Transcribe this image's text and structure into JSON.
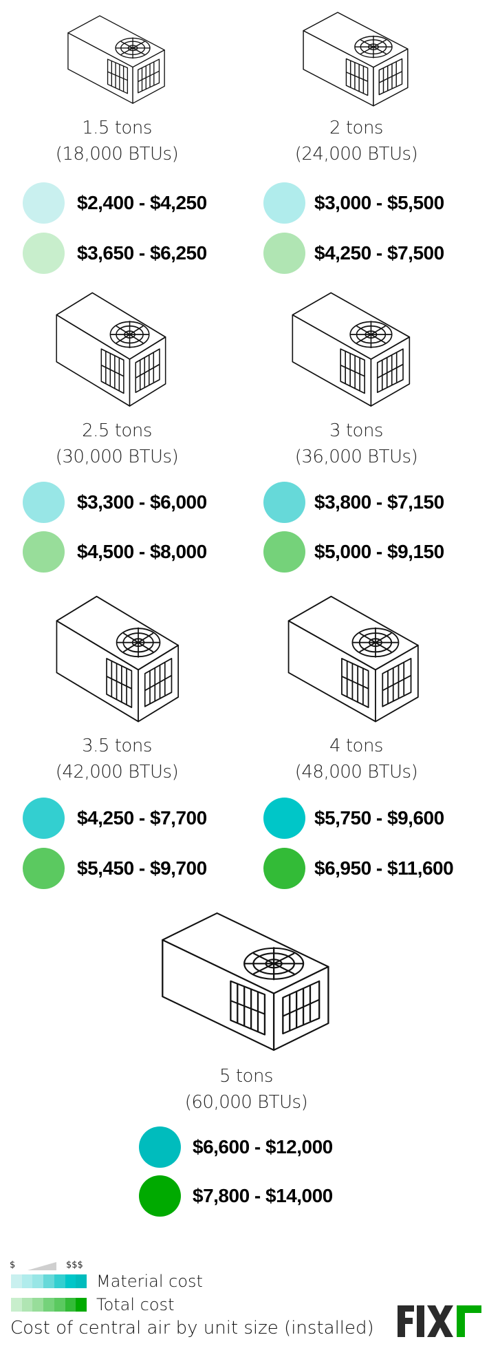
{
  "units": [
    {
      "size": "1.5 tons",
      "btu": "(18,000 BTUs)",
      "material": "$2,400 - $4,250",
      "total": "$3,650 - $6,250",
      "material_color": "#c9f0ef",
      "total_color": "#c8eecc"
    },
    {
      "size": "2 tons",
      "btu": "(24,000 BTUs)",
      "material": "$3,000 - $5,500",
      "total": "$4,250 - $7,500",
      "material_color": "#b0ecec",
      "total_color": "#b0e5b3"
    },
    {
      "size": "2.5 tons",
      "btu": "(30,000 BTUs)",
      "material": "$3,300 - $6,000",
      "total": "$4,500 - $8,000",
      "material_color": "#98e6e6",
      "total_color": "#98dd9a"
    },
    {
      "size": "3 tons",
      "btu": "(36,000 BTUs)",
      "material": "$3,800 - $7,150",
      "total": "$5,000 - $9,150",
      "material_color": "#66d9d9",
      "total_color": "#75d27a"
    },
    {
      "size": "3.5 tons",
      "btu": "(42,000 BTUs)",
      "material": "$4,250 - $7,700",
      "total": "$5,450 - $9,700",
      "material_color": "#33cfd0",
      "total_color": "#5bc960"
    },
    {
      "size": "4 tons",
      "btu": "(48,000 BTUs)",
      "material": "$5,750 - $9,600",
      "total": "$6,950 - $11,600",
      "material_color": "#00c6c8",
      "total_color": "#33bb37"
    },
    {
      "size": "5 tons",
      "btu": "(60,000 BTUs)",
      "material": "$6,600 - $12,000",
      "total": "$7,800 - $14,000",
      "material_color": "#00bcbd",
      "total_color": "#00aa00"
    }
  ],
  "legend": {
    "low_label": "$",
    "high_label": "$$$",
    "material_label": "Material cost",
    "total_label": "Total cost",
    "material_scale": [
      "#c9f0ef",
      "#b0ecec",
      "#98e6e6",
      "#66d9d9",
      "#33cfd0",
      "#00c6c8",
      "#00bcbd"
    ],
    "total_scale": [
      "#c8eecc",
      "#b0e5b3",
      "#98dd9a",
      "#75d27a",
      "#5bc960",
      "#33bb37",
      "#00aa00"
    ]
  },
  "caption": "Cost of central air by unit size (installed)",
  "logo": {
    "text": "FIXR",
    "dark": "#2b2b2b",
    "accent": "#00aa00"
  }
}
